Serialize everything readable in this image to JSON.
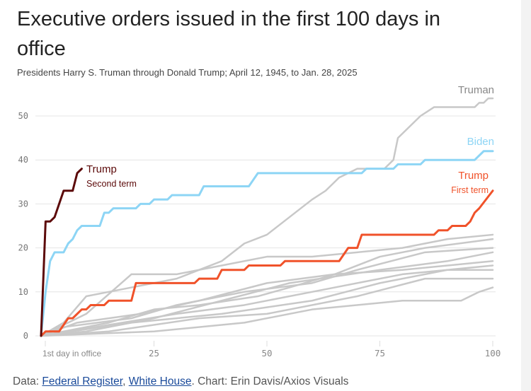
{
  "title": "Executive orders issued in the first 100 days in office",
  "subtitle": "Presidents Harry S. Truman through Donald Trump; April 12, 1945, to Jan. 28, 2025",
  "footer": {
    "data_prefix": "Data:",
    "link1": "Federal Register",
    "sep": ",",
    "link2": "White House",
    "chart_credit": ". Chart: Erin Davis/Axios Visuals"
  },
  "colors": {
    "trump_second": "#5c0a0a",
    "trump_first": "#f0522a",
    "biden": "#8dd5f5",
    "other": "#c8c8c8",
    "truman_label": "#888888"
  },
  "chart_data": {
    "type": "line",
    "xlim": [
      0,
      100
    ],
    "ylim": [
      0,
      55
    ],
    "x_ticks": [
      {
        "v": 0,
        "label": "1st day in office"
      },
      {
        "v": 25,
        "label": "25"
      },
      {
        "v": 50,
        "label": "50"
      },
      {
        "v": 75,
        "label": "75"
      },
      {
        "v": 100,
        "label": "100"
      }
    ],
    "y_ticks": [
      0,
      10,
      20,
      30,
      40,
      50
    ],
    "grid": true,
    "series": [
      {
        "name": "Truman",
        "color": "#c8c8c8",
        "label_sub": "",
        "points": [
          [
            0,
            0
          ],
          [
            5,
            3
          ],
          [
            10,
            9
          ],
          [
            20,
            11
          ],
          [
            30,
            13
          ],
          [
            35,
            15
          ],
          [
            40,
            17
          ],
          [
            45,
            21
          ],
          [
            50,
            23
          ],
          [
            55,
            27
          ],
          [
            60,
            31
          ],
          [
            63,
            33
          ],
          [
            66,
            36
          ],
          [
            70,
            38
          ],
          [
            76,
            38
          ],
          [
            78,
            40
          ],
          [
            79,
            45
          ],
          [
            84,
            50
          ],
          [
            87,
            52
          ],
          [
            96,
            52
          ],
          [
            97,
            53
          ],
          [
            98,
            53
          ],
          [
            99,
            54
          ],
          [
            100,
            54
          ]
        ]
      },
      {
        "name": "",
        "color": "#c8c8c8",
        "points": [
          [
            0,
            0
          ],
          [
            10,
            5
          ],
          [
            20,
            14
          ],
          [
            30,
            14
          ],
          [
            40,
            16
          ],
          [
            50,
            18
          ],
          [
            60,
            18
          ],
          [
            70,
            19
          ],
          [
            80,
            20
          ],
          [
            90,
            22
          ],
          [
            100,
            23
          ]
        ]
      },
      {
        "name": "",
        "color": "#c8c8c8",
        "points": [
          [
            0,
            0
          ],
          [
            15,
            3
          ],
          [
            25,
            6
          ],
          [
            35,
            7
          ],
          [
            48,
            9
          ],
          [
            55,
            11
          ],
          [
            65,
            14
          ],
          [
            75,
            18
          ],
          [
            85,
            20
          ],
          [
            100,
            22
          ]
        ]
      },
      {
        "name": "",
        "color": "#c8c8c8",
        "points": [
          [
            0,
            0
          ],
          [
            5,
            2
          ],
          [
            20,
            4
          ],
          [
            30,
            7
          ],
          [
            45,
            10
          ],
          [
            60,
            12
          ],
          [
            70,
            15
          ],
          [
            85,
            19
          ],
          [
            100,
            20
          ]
        ]
      },
      {
        "name": "",
        "color": "#c8c8c8",
        "points": [
          [
            0,
            0
          ],
          [
            10,
            1
          ],
          [
            25,
            4
          ],
          [
            40,
            8
          ],
          [
            55,
            12
          ],
          [
            75,
            15
          ],
          [
            90,
            17
          ],
          [
            100,
            19
          ]
        ]
      },
      {
        "name": "",
        "color": "#c8c8c8",
        "points": [
          [
            0,
            0
          ],
          [
            8,
            3
          ],
          [
            22,
            5
          ],
          [
            35,
            8
          ],
          [
            50,
            12
          ],
          [
            65,
            14
          ],
          [
            80,
            15
          ],
          [
            100,
            17
          ]
        ]
      },
      {
        "name": "",
        "color": "#c8c8c8",
        "points": [
          [
            0,
            0
          ],
          [
            12,
            2
          ],
          [
            30,
            5
          ],
          [
            45,
            7
          ],
          [
            60,
            10
          ],
          [
            80,
            14
          ],
          [
            100,
            16
          ]
        ]
      },
      {
        "name": "",
        "color": "#c8c8c8",
        "points": [
          [
            0,
            0
          ],
          [
            20,
            3
          ],
          [
            40,
            5
          ],
          [
            60,
            8
          ],
          [
            75,
            12
          ],
          [
            90,
            15
          ],
          [
            100,
            15
          ]
        ]
      },
      {
        "name": "",
        "color": "#c8c8c8",
        "points": [
          [
            0,
            0
          ],
          [
            15,
            1
          ],
          [
            35,
            4
          ],
          [
            50,
            5
          ],
          [
            70,
            9
          ],
          [
            85,
            13
          ],
          [
            100,
            13
          ]
        ]
      },
      {
        "name": "",
        "color": "#c8c8c8",
        "points": [
          [
            0,
            0
          ],
          [
            25,
            1
          ],
          [
            45,
            3
          ],
          [
            60,
            6
          ],
          [
            80,
            8
          ],
          [
            93,
            8
          ],
          [
            97,
            10
          ],
          [
            100,
            11
          ]
        ]
      },
      {
        "name": "Biden",
        "color": "#8dd5f5",
        "points": [
          [
            0,
            0
          ],
          [
            1,
            10
          ],
          [
            2,
            17
          ],
          [
            3,
            19
          ],
          [
            5,
            19
          ],
          [
            6,
            21
          ],
          [
            7,
            22
          ],
          [
            8,
            24
          ],
          [
            9,
            25
          ],
          [
            13,
            25
          ],
          [
            14,
            28
          ],
          [
            15,
            28
          ],
          [
            16,
            29
          ],
          [
            21,
            29
          ],
          [
            22,
            30
          ],
          [
            24,
            30
          ],
          [
            25,
            31
          ],
          [
            28,
            31
          ],
          [
            29,
            32
          ],
          [
            35,
            32
          ],
          [
            36,
            34
          ],
          [
            46,
            34
          ],
          [
            48,
            37
          ],
          [
            71,
            37
          ],
          [
            72,
            38
          ],
          [
            78,
            38
          ],
          [
            79,
            39
          ],
          [
            84,
            39
          ],
          [
            85,
            40
          ],
          [
            96,
            40
          ],
          [
            98,
            42
          ],
          [
            100,
            42
          ]
        ]
      },
      {
        "name": "Trump",
        "label_sub": "First term",
        "color": "#f0522a",
        "points": [
          [
            0,
            0
          ],
          [
            1,
            1
          ],
          [
            4,
            1
          ],
          [
            6,
            4
          ],
          [
            7,
            4
          ],
          [
            9,
            6
          ],
          [
            10,
            6
          ],
          [
            11,
            7
          ],
          [
            14,
            7
          ],
          [
            15,
            8
          ],
          [
            20,
            8
          ],
          [
            21,
            12
          ],
          [
            34,
            12
          ],
          [
            35,
            13
          ],
          [
            39,
            13
          ],
          [
            40,
            15
          ],
          [
            45,
            15
          ],
          [
            46,
            16
          ],
          [
            53,
            16
          ],
          [
            54,
            17
          ],
          [
            66,
            17
          ],
          [
            68,
            20
          ],
          [
            70,
            20
          ],
          [
            71,
            23
          ],
          [
            87,
            23
          ],
          [
            88,
            24
          ],
          [
            90,
            24
          ],
          [
            91,
            25
          ],
          [
            94,
            25
          ],
          [
            95,
            26
          ],
          [
            96,
            28
          ],
          [
            97,
            29
          ],
          [
            100,
            33
          ]
        ]
      },
      {
        "name": "Trump",
        "label_sub": "Second term",
        "color": "#5c0a0a",
        "points": [
          [
            0,
            0
          ],
          [
            1,
            26
          ],
          [
            2,
            26
          ],
          [
            3,
            27
          ],
          [
            4,
            30
          ],
          [
            5,
            33
          ],
          [
            7,
            33
          ],
          [
            8,
            37
          ],
          [
            9,
            38
          ]
        ]
      }
    ]
  }
}
